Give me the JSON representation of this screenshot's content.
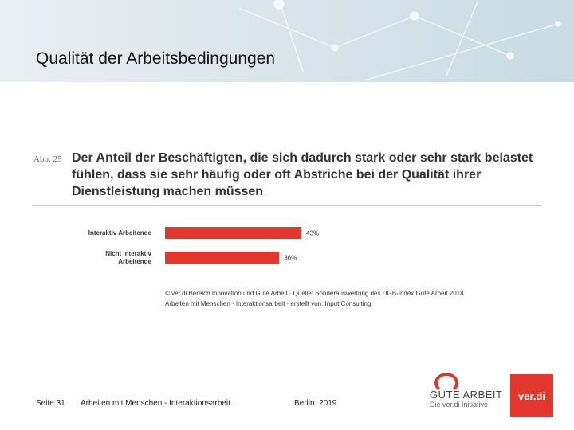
{
  "slide": {
    "title": "Qualität der Arbeitsbedingungen",
    "figure_label": "Abb. 25",
    "source": [
      "© ver.di Bereich Innovation und Gute Arbeit · Quelle: Sonderauswertung des DGB-Index Gute Arbeit 2018",
      "Arbeiten mit Menschen · Interaktionsarbeit · erstellt von: Input Consulting"
    ],
    "footer": {
      "page": "Seite 31",
      "topic": "Arbeiten mit Menschen - Interaktionsarbeit",
      "place_date": "Berlin, 2019"
    },
    "logos": {
      "gute_arbeit": "GUTE ARBEIT",
      "initiative": "Die ver.di Initiative",
      "verdi": "ver.di"
    }
  },
  "chart_data": {
    "type": "hbar",
    "title": "Der Anteil der Beschäftigten, die sich dadurch stark oder sehr stark belastet fühlen, dass sie sehr häufig oder oft Abstriche bei der Qualität ihrer Dienstleistung machen müssen",
    "categories": [
      "Interaktiv Arbeitende",
      "Nicht interaktiv Arbeitende"
    ],
    "values": [
      43,
      36
    ],
    "value_labels": [
      "43%",
      "36%"
    ],
    "color": "#e2372c"
  }
}
